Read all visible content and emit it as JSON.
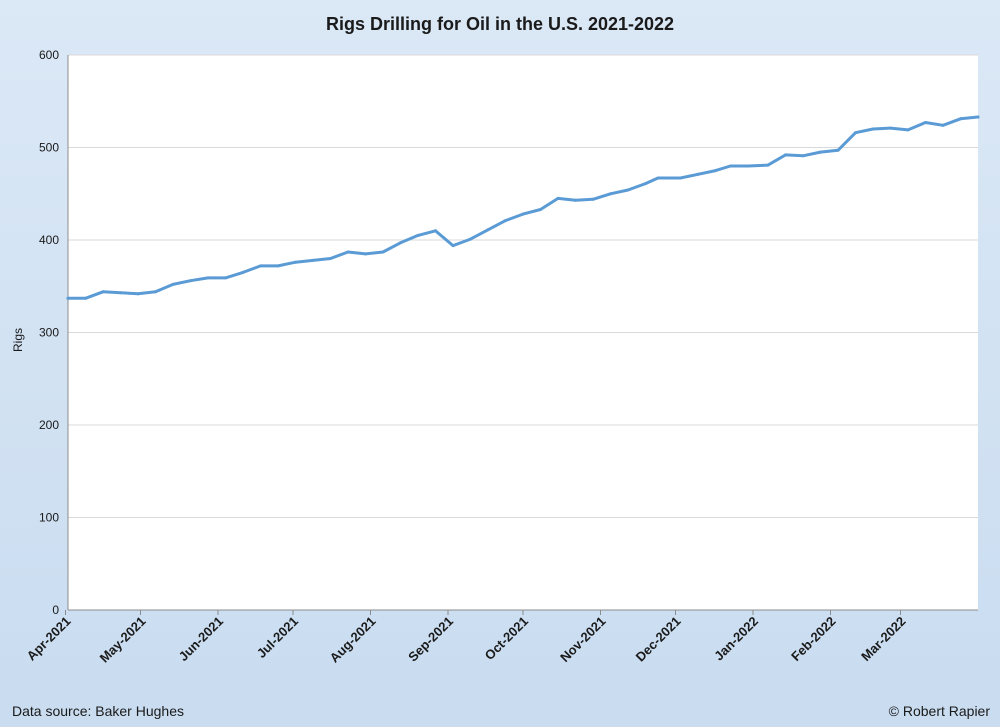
{
  "chart_data": {
    "type": "line",
    "title": "Rigs Drilling for Oil in the U.S. 2021-2022",
    "xlabel": "",
    "ylabel": "Rigs",
    "ylim": [
      0,
      600
    ],
    "yticks": [
      0,
      100,
      200,
      300,
      400,
      500,
      600
    ],
    "grid": true,
    "legend": "none",
    "x_start": "2021-04-02",
    "x_end": "2022-04-01",
    "x_tick_labels": [
      "Apr-2021",
      "May-2021",
      "Jun-2021",
      "Jul-2021",
      "Aug-2021",
      "Sep-2021",
      "Oct-2021",
      "Nov-2021",
      "Dec-2021",
      "Jan-2022",
      "Feb-2022",
      "Mar-2022"
    ],
    "x_tick_dates": [
      "2021-04-01",
      "2021-05-01",
      "2021-06-01",
      "2021-07-01",
      "2021-08-01",
      "2021-09-01",
      "2021-10-01",
      "2021-11-01",
      "2021-12-01",
      "2022-01-01",
      "2022-02-01",
      "2022-03-01"
    ],
    "line_color": "#5b9bd5",
    "series": [
      {
        "dates": [
          "2021-04-02",
          "2021-04-09",
          "2021-04-16",
          "2021-04-23",
          "2021-04-30",
          "2021-05-07",
          "2021-05-14",
          "2021-05-21",
          "2021-05-28",
          "2021-06-04",
          "2021-06-11",
          "2021-06-18",
          "2021-06-25",
          "2021-07-02",
          "2021-07-09",
          "2021-07-16",
          "2021-07-23",
          "2021-07-30",
          "2021-08-06",
          "2021-08-13",
          "2021-08-20",
          "2021-08-27",
          "2021-09-03",
          "2021-09-10",
          "2021-09-17",
          "2021-09-24",
          "2021-10-01",
          "2021-10-08",
          "2021-10-15",
          "2021-10-22",
          "2021-10-29",
          "2021-11-05",
          "2021-11-12",
          "2021-11-19",
          "2021-11-24",
          "2021-12-03",
          "2021-12-10",
          "2021-12-17",
          "2021-12-23",
          "2021-12-30",
          "2022-01-07",
          "2022-01-14",
          "2022-01-21",
          "2022-01-28",
          "2022-02-04",
          "2022-02-11",
          "2022-02-18",
          "2022-02-25",
          "2022-03-04",
          "2022-03-11",
          "2022-03-18",
          "2022-03-25",
          "2022-04-01"
        ],
        "values": [
          337,
          337,
          344,
          343,
          342,
          344,
          352,
          356,
          359,
          359,
          365,
          372,
          372,
          376,
          378,
          380,
          387,
          385,
          387,
          397,
          405,
          410,
          394,
          401,
          411,
          421,
          428,
          433,
          445,
          443,
          444,
          450,
          454,
          461,
          467,
          467,
          471,
          475,
          480,
          480,
          481,
          492,
          491,
          495,
          497,
          516,
          520,
          521,
          519,
          527,
          524,
          531,
          533
        ]
      }
    ]
  },
  "footer": {
    "source": "Data source: Baker Hughes",
    "credit": "© Robert Rapier"
  }
}
